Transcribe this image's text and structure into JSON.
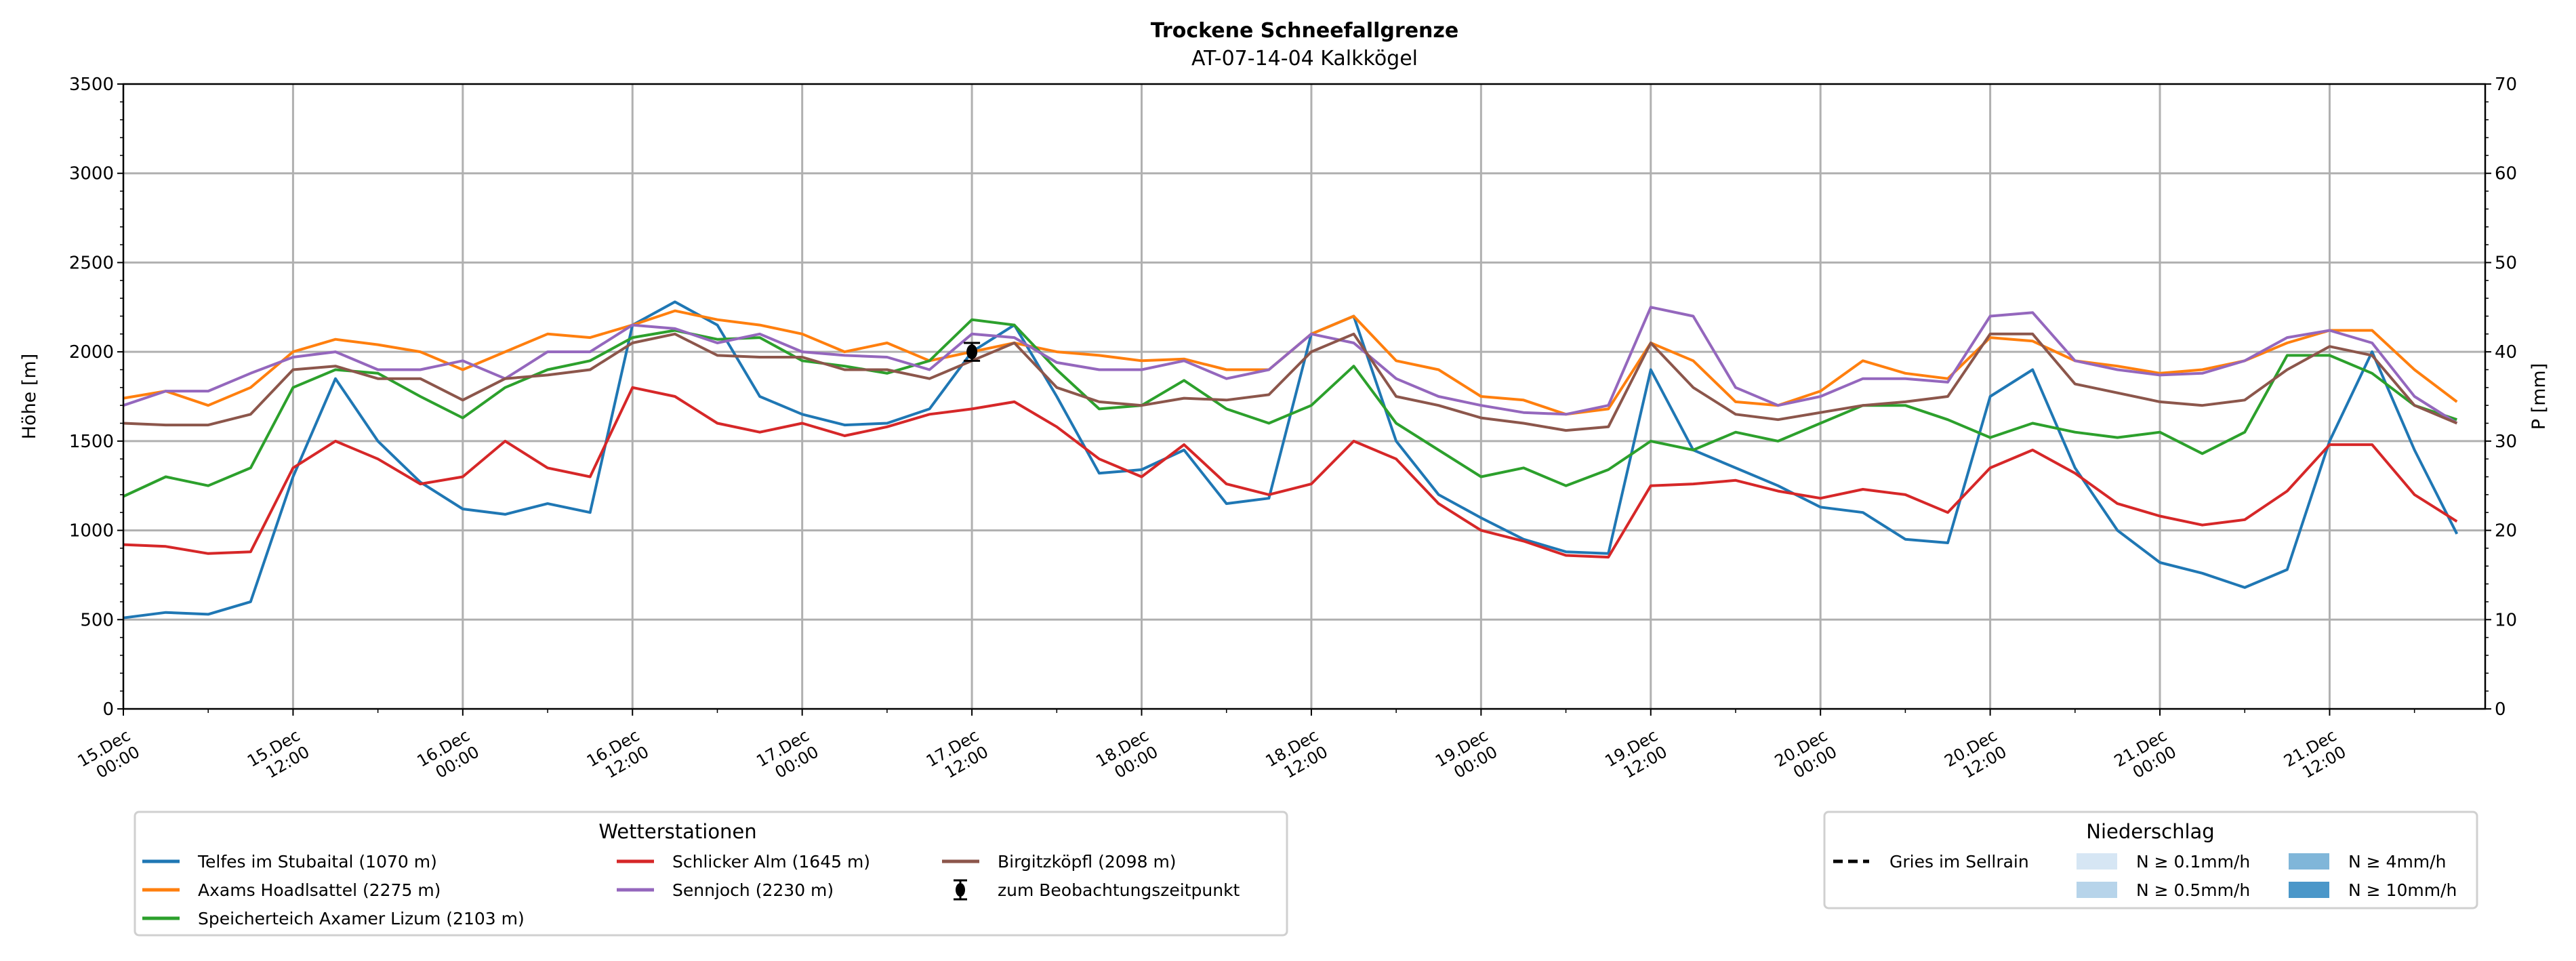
{
  "chart_data": {
    "type": "line",
    "title": "Trockene Schneefallgrenze",
    "subtitle": "AT-07-14-04 Kalkkögel",
    "ylabel": "Höhe [m]",
    "ylabel_right": "P [mm]",
    "ylim": [
      0,
      3500
    ],
    "ylim_right": [
      0,
      70
    ],
    "yticks": [
      0,
      500,
      1000,
      1500,
      2000,
      2500,
      3000,
      3500
    ],
    "yticks_right": [
      0,
      10,
      20,
      30,
      40,
      50,
      60,
      70
    ],
    "grid": true,
    "x_start": "15.Dec 00:00",
    "x_step_hours": 3,
    "x_range_hours": [
      0,
      167
    ],
    "xticks": [
      {
        "hour": 0,
        "line1": "15.Dec",
        "line2": "00:00"
      },
      {
        "hour": 12,
        "line1": "15.Dec",
        "line2": "12:00"
      },
      {
        "hour": 24,
        "line1": "16.Dec",
        "line2": "00:00"
      },
      {
        "hour": 36,
        "line1": "16.Dec",
        "line2": "12:00"
      },
      {
        "hour": 48,
        "line1": "17.Dec",
        "line2": "00:00"
      },
      {
        "hour": 60,
        "line1": "17.Dec",
        "line2": "12:00"
      },
      {
        "hour": 72,
        "line1": "18.Dec",
        "line2": "00:00"
      },
      {
        "hour": 84,
        "line1": "18.Dec",
        "line2": "12:00"
      },
      {
        "hour": 96,
        "line1": "19.Dec",
        "line2": "00:00"
      },
      {
        "hour": 108,
        "line1": "19.Dec",
        "line2": "12:00"
      },
      {
        "hour": 120,
        "line1": "20.Dec",
        "line2": "00:00"
      },
      {
        "hour": 132,
        "line1": "20.Dec",
        "line2": "12:00"
      },
      {
        "hour": 144,
        "line1": "21.Dec",
        "line2": "00:00"
      },
      {
        "hour": 156,
        "line1": "21.Dec",
        "line2": "12:00"
      }
    ],
    "series": [
      {
        "name": "Telfes im Stubaital (1070 m)",
        "color": "#1f77b4",
        "values": [
          510,
          540,
          530,
          600,
          1300,
          1850,
          1500,
          1270,
          1120,
          1090,
          1150,
          1100,
          2150,
          2280,
          2150,
          1750,
          1650,
          1590,
          1600,
          1680,
          2000,
          2150,
          1750,
          1320,
          1340,
          1450,
          1150,
          1180,
          2100,
          2200,
          1500,
          1200,
          1070,
          950,
          880,
          870,
          1900,
          1450,
          1350,
          1250,
          1130,
          1100,
          950,
          930,
          1750,
          1900,
          1350,
          1000,
          820,
          760,
          680,
          780,
          1500,
          2000,
          1450,
          980
        ]
      },
      {
        "name": "Axams Hoadlsattel (2275 m)",
        "color": "#ff7f0e",
        "values": [
          1740,
          1780,
          1700,
          1800,
          2000,
          2070,
          2040,
          2000,
          1900,
          2000,
          2100,
          2080,
          2150,
          2230,
          2180,
          2150,
          2100,
          2000,
          2050,
          1950,
          2000,
          2050,
          2000,
          1980,
          1950,
          1960,
          1900,
          1900,
          2100,
          2200,
          1950,
          1900,
          1750,
          1730,
          1650,
          1680,
          2050,
          1950,
          1720,
          1700,
          1780,
          1950,
          1880,
          1850,
          2080,
          2060,
          1950,
          1920,
          1880,
          1900,
          1950,
          2050,
          2120,
          2120,
          1900,
          1720
        ]
      },
      {
        "name": "Speicherteich Axamer Lizum (2103 m)",
        "color": "#2ca02c",
        "values": [
          1190,
          1300,
          1250,
          1350,
          1800,
          1900,
          1880,
          1750,
          1630,
          1800,
          1900,
          1950,
          2080,
          2120,
          2070,
          2080,
          1950,
          1920,
          1880,
          1950,
          2180,
          2150,
          1900,
          1680,
          1700,
          1840,
          1680,
          1600,
          1700,
          1920,
          1600,
          1450,
          1300,
          1350,
          1250,
          1340,
          1500,
          1450,
          1550,
          1500,
          1600,
          1700,
          1700,
          1620,
          1520,
          1600,
          1550,
          1520,
          1550,
          1430,
          1550,
          1980,
          1980,
          1880,
          1700,
          1620
        ]
      },
      {
        "name": "Schlicker Alm (1645 m)",
        "color": "#d62728",
        "values": [
          920,
          910,
          870,
          880,
          1350,
          1500,
          1400,
          1260,
          1300,
          1500,
          1350,
          1300,
          1800,
          1750,
          1600,
          1550,
          1600,
          1530,
          1580,
          1650,
          1680,
          1720,
          1580,
          1400,
          1300,
          1480,
          1260,
          1200,
          1260,
          1500,
          1400,
          1150,
          1000,
          940,
          860,
          850,
          1250,
          1260,
          1280,
          1220,
          1180,
          1230,
          1200,
          1100,
          1350,
          1450,
          1320,
          1150,
          1080,
          1030,
          1060,
          1220,
          1480,
          1480,
          1200,
          1050
        ]
      },
      {
        "name": "Sennjoch (2230 m)",
        "color": "#9467bd",
        "values": [
          1700,
          1780,
          1780,
          1880,
          1970,
          2000,
          1900,
          1900,
          1950,
          1850,
          2000,
          2000,
          2150,
          2130,
          2050,
          2100,
          2000,
          1980,
          1970,
          1900,
          2100,
          2080,
          1940,
          1900,
          1900,
          1950,
          1850,
          1900,
          2100,
          2050,
          1850,
          1750,
          1700,
          1660,
          1650,
          1700,
          2250,
          2200,
          1800,
          1700,
          1750,
          1850,
          1850,
          1830,
          2200,
          2220,
          1950,
          1900,
          1870,
          1880,
          1950,
          2080,
          2120,
          2050,
          1750,
          1600
        ]
      },
      {
        "name": "Birgitzköpfl (2098 m)",
        "color": "#8c564b",
        "values": [
          1600,
          1590,
          1590,
          1650,
          1900,
          1920,
          1850,
          1850,
          1730,
          1850,
          1870,
          1900,
          2050,
          2100,
          1980,
          1970,
          1970,
          1900,
          1900,
          1850,
          1950,
          2050,
          1800,
          1720,
          1700,
          1740,
          1730,
          1760,
          2000,
          2100,
          1750,
          1700,
          1630,
          1600,
          1560,
          1580,
          2050,
          1800,
          1650,
          1620,
          1660,
          1700,
          1720,
          1750,
          2100,
          2100,
          1820,
          1770,
          1720,
          1700,
          1730,
          1900,
          2030,
          1980,
          1700,
          1600
        ]
      }
    ],
    "observation": {
      "label": "zum Beobachtungszeitpunkt",
      "hour": 60,
      "value": 2000,
      "error": 50
    },
    "legend_stations": {
      "title": "Wetterstationen",
      "placement": "bottom-left"
    },
    "legend_precip": {
      "title": "Niederschlag",
      "placement": "bottom-right",
      "line_label": "Gries im Sellrain",
      "bins": [
        {
          "label": "N ≥ 0.1mm/h",
          "color": "#d6e6f4"
        },
        {
          "label": "N ≥ 0.5mm/h",
          "color": "#b7d4ea"
        },
        {
          "label": "N ≥ 4mm/h",
          "color": "#80b6d9"
        },
        {
          "label": "N ≥ 10mm/h",
          "color": "#4b97c9"
        }
      ]
    }
  }
}
